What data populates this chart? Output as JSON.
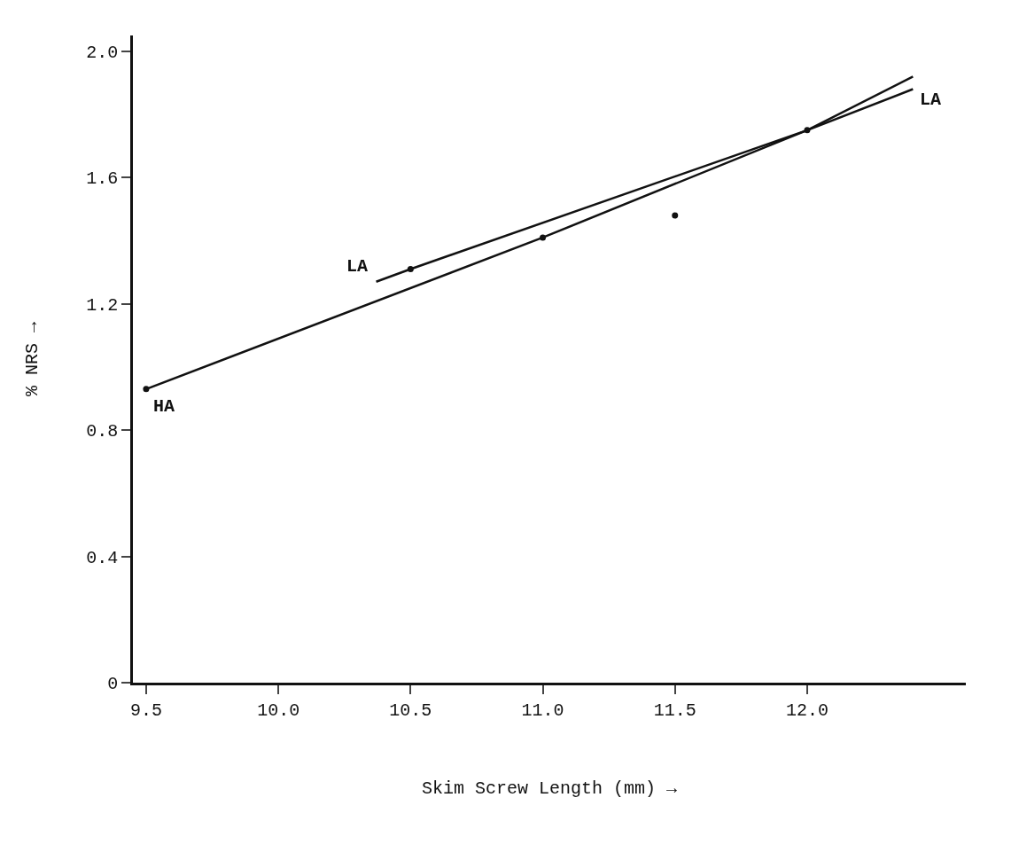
{
  "chart_data": {
    "type": "line",
    "xlabel": "Skim Screw Length (mm) →",
    "ylabel": "% NRS →",
    "xlim": [
      9.45,
      12.6
    ],
    "xticks": [
      9.5,
      {
        "value": 10,
        "label": "10.0"
      },
      10.5,
      {
        "value": 11,
        "label": "11.0"
      },
      11.5,
      {
        "value": 12,
        "label": "12.0"
      }
    ],
    "ylim": [
      0,
      2.05
    ],
    "yticks": [
      0,
      0.4,
      0.8,
      1.2,
      1.6,
      {
        "value": 2,
        "label": "2.0"
      }
    ],
    "grid": false,
    "marker": "none",
    "line_style": "solid",
    "series": [
      {
        "color": "#111111",
        "x": [
          10.37,
          10.5,
          12.0,
          12.4
        ],
        "values": [
          1.27,
          1.31,
          1.75,
          1.92
        ]
      },
      {
        "color": "#111111",
        "x": [
          9.5,
          11.0,
          12.0,
          12.4
        ],
        "values": [
          0.93,
          1.41,
          1.75,
          1.88
        ]
      },
      {
        "type": "scatter",
        "color": "#111111",
        "marker": "circle",
        "x": [
          9.5,
          10.5,
          11.0,
          11.5,
          12.0
        ],
        "values": [
          0.93,
          1.31,
          1.41,
          1.48,
          1.75
        ]
      }
    ],
    "annotations": [
      {
        "text": "LA",
        "x": 10.37,
        "y": 1.27
      },
      {
        "text": "LA",
        "x": 12.4,
        "y": 1.9
      },
      {
        "text": "HA",
        "x": 9.5,
        "y": 0.93
      }
    ]
  }
}
